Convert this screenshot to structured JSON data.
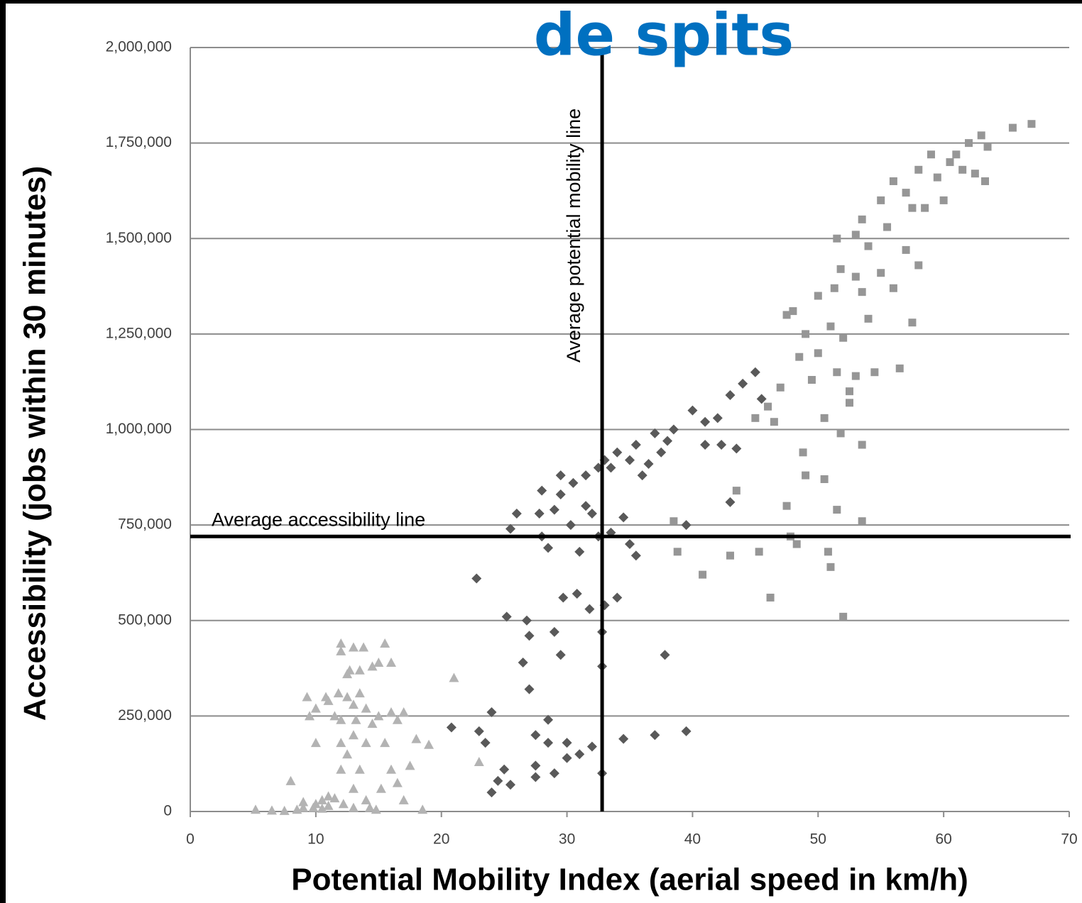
{
  "chart_data": {
    "type": "scatter",
    "title": "de spits",
    "x_label": "Potential Mobility Index (aerial speed in km/h)",
    "y_label": "Accessibility (jobs within 30 minutes)",
    "xlim": [
      0,
      70
    ],
    "xticks": [
      0,
      10,
      20,
      30,
      40,
      50,
      60,
      70
    ],
    "ylim": [
      0,
      2000000
    ],
    "yticks": [
      0,
      {
        "value": 250000,
        "label": "250,000"
      },
      {
        "value": 500000,
        "label": "500,000"
      },
      {
        "value": 750000,
        "label": "750,000"
      },
      {
        "value": 1000000,
        "label": "1,000,000"
      },
      {
        "value": 1250000,
        "label": "1,250,000"
      },
      {
        "value": 1500000,
        "label": "1,500,000"
      },
      {
        "value": 1750000,
        "label": "1,750,000"
      },
      {
        "value": 2000000,
        "label": "2,000,000"
      }
    ],
    "grid": true,
    "reference_lines": [
      {
        "axis": "x",
        "value": 32.8,
        "label": "Average potential mobility line"
      },
      {
        "axis": "y",
        "value": 720000,
        "label": "Average accessibility line"
      }
    ],
    "series": [
      {
        "marker": "triangle",
        "color": "#b3b3b3",
        "x": [
          5.2,
          6.5,
          7.5,
          8,
          8.5,
          9,
          9.3,
          9.5,
          9.8,
          10,
          10,
          10,
          10.5,
          10.5,
          10.8,
          11,
          11,
          11.5,
          11.5,
          11.8,
          12,
          12,
          12,
          12,
          12,
          12.2,
          12.5,
          12.5,
          12.5,
          12.7,
          13,
          13,
          13,
          13,
          13,
          13.2,
          13.5,
          13.5,
          13.5,
          13.8,
          14,
          14,
          14,
          14.3,
          14.5,
          14.5,
          14.8,
          15,
          15,
          15.2,
          15.5,
          15.5,
          16,
          16,
          16,
          16.5,
          17,
          17,
          17.5,
          18,
          18.5,
          19,
          21,
          23,
          16.5,
          11,
          9
        ],
        "values": [
          5000,
          3000,
          2000,
          80000,
          5000,
          25000,
          300000,
          250000,
          10000,
          270000,
          180000,
          20000,
          8000,
          30000,
          300000,
          290000,
          15000,
          250000,
          35000,
          310000,
          440000,
          420000,
          240000,
          180000,
          110000,
          20000,
          360000,
          300000,
          150000,
          370000,
          430000,
          280000,
          200000,
          60000,
          10000,
          240000,
          310000,
          370000,
          110000,
          430000,
          270000,
          180000,
          30000,
          10000,
          380000,
          230000,
          5000,
          390000,
          250000,
          60000,
          440000,
          180000,
          390000,
          260000,
          110000,
          240000,
          260000,
          30000,
          120000,
          190000,
          5000,
          175000,
          350000,
          130000,
          75000,
          40000,
          10000
        ]
      },
      {
        "marker": "diamond",
        "color": "#595959",
        "x": [
          22.8,
          20.8,
          23,
          23.5,
          24,
          24,
          24.5,
          25,
          25.2,
          25.5,
          25.5,
          26,
          26.5,
          26.8,
          27,
          27,
          27.5,
          27.5,
          27.5,
          27.8,
          28,
          28,
          28.5,
          28.5,
          28.5,
          29,
          29,
          29,
          29.5,
          29.5,
          29.5,
          29.7,
          30,
          30,
          30.3,
          30.5,
          30.8,
          31,
          31,
          31.5,
          31.5,
          31.8,
          32,
          32,
          32.5,
          32.5,
          32.8,
          32.8,
          32.8,
          33,
          33,
          33.5,
          33.5,
          34,
          34,
          34.5,
          34.5,
          35,
          35,
          35.5,
          35.5,
          36,
          37,
          37,
          37.8,
          38,
          38.5,
          39.5,
          39.5,
          40,
          41,
          41,
          42,
          42.3,
          43,
          43,
          43.5,
          44,
          45,
          45.5,
          37.5,
          36.5
        ],
        "values": [
          610000,
          220000,
          210000,
          180000,
          260000,
          50000,
          80000,
          110000,
          510000,
          70000,
          740000,
          780000,
          390000,
          500000,
          460000,
          320000,
          200000,
          120000,
          90000,
          780000,
          840000,
          720000,
          690000,
          240000,
          180000,
          790000,
          470000,
          100000,
          880000,
          830000,
          410000,
          560000,
          140000,
          180000,
          750000,
          860000,
          570000,
          680000,
          150000,
          880000,
          800000,
          530000,
          170000,
          780000,
          900000,
          720000,
          470000,
          380000,
          100000,
          920000,
          540000,
          730000,
          900000,
          940000,
          560000,
          770000,
          190000,
          920000,
          700000,
          960000,
          670000,
          880000,
          990000,
          200000,
          410000,
          970000,
          1000000,
          750000,
          210000,
          1050000,
          1020000,
          960000,
          1030000,
          960000,
          1090000,
          810000,
          950000,
          1120000,
          1150000,
          1080000,
          940000,
          910000
        ]
      },
      {
        "marker": "square",
        "color": "#969696",
        "x": [
          38.5,
          38.8,
          40.8,
          43,
          43.5,
          45,
          45.3,
          46,
          46.2,
          46.5,
          47,
          47.5,
          47.5,
          47.8,
          48,
          48.3,
          48.5,
          48.8,
          49,
          49,
          49.5,
          50,
          50,
          50.5,
          50.5,
          50.8,
          51,
          51,
          51.3,
          51.5,
          51.5,
          51.5,
          51.8,
          51.8,
          52,
          52,
          52.5,
          53,
          53,
          53.5,
          53.5,
          53.5,
          53.5,
          54,
          54,
          54.5,
          55,
          55,
          55.5,
          56,
          56,
          56.5,
          57,
          57,
          57.5,
          57.5,
          58,
          58,
          58.5,
          59,
          59.5,
          60,
          60.5,
          61,
          61.5,
          62,
          62.5,
          63,
          63.3,
          63.5,
          65.5,
          67,
          53,
          52.5
        ],
        "values": [
          760000,
          680000,
          620000,
          670000,
          840000,
          1030000,
          680000,
          1060000,
          560000,
          1020000,
          1110000,
          1300000,
          800000,
          720000,
          1310000,
          700000,
          1190000,
          940000,
          1250000,
          880000,
          1130000,
          1350000,
          1200000,
          870000,
          1030000,
          680000,
          1270000,
          640000,
          1370000,
          1500000,
          1150000,
          790000,
          1420000,
          990000,
          1240000,
          510000,
          1070000,
          1400000,
          1140000,
          1550000,
          1360000,
          960000,
          760000,
          1290000,
          1480000,
          1150000,
          1600000,
          1410000,
          1530000,
          1370000,
          1650000,
          1160000,
          1620000,
          1470000,
          1580000,
          1280000,
          1680000,
          1430000,
          1580000,
          1720000,
          1660000,
          1600000,
          1700000,
          1720000,
          1680000,
          1750000,
          1670000,
          1770000,
          1650000,
          1740000,
          1790000,
          1800000,
          1510000,
          1100000
        ]
      }
    ]
  }
}
